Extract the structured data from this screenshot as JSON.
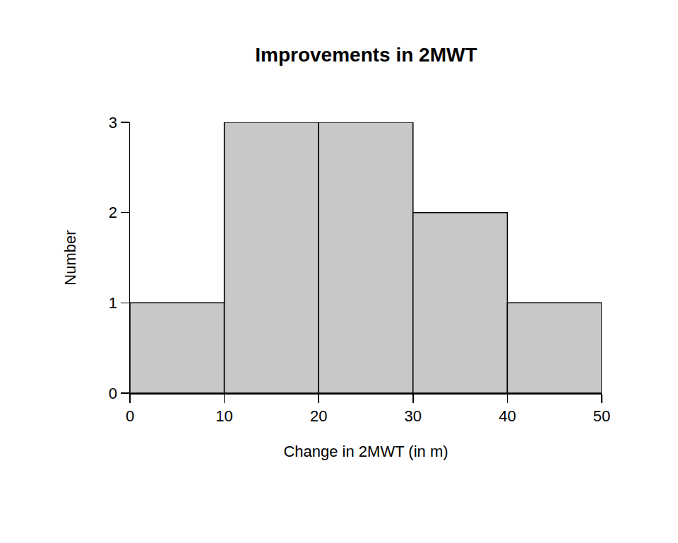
{
  "chart_data": {
    "type": "histogram",
    "title": "Improvements in 2MWT",
    "x_label": "Change in 2MWT (in m)",
    "y_label": "Number",
    "bins": [
      0,
      10,
      20,
      30,
      40,
      50
    ],
    "values": [
      1,
      3,
      3,
      2,
      1
    ],
    "color": "#c8c8c8",
    "xlim": [
      0,
      50
    ],
    "xticks": [
      0,
      10,
      20,
      30,
      40,
      50
    ],
    "ylim": [
      0,
      3
    ],
    "yticks": [
      0,
      1,
      2,
      3
    ],
    "grid": false
  }
}
